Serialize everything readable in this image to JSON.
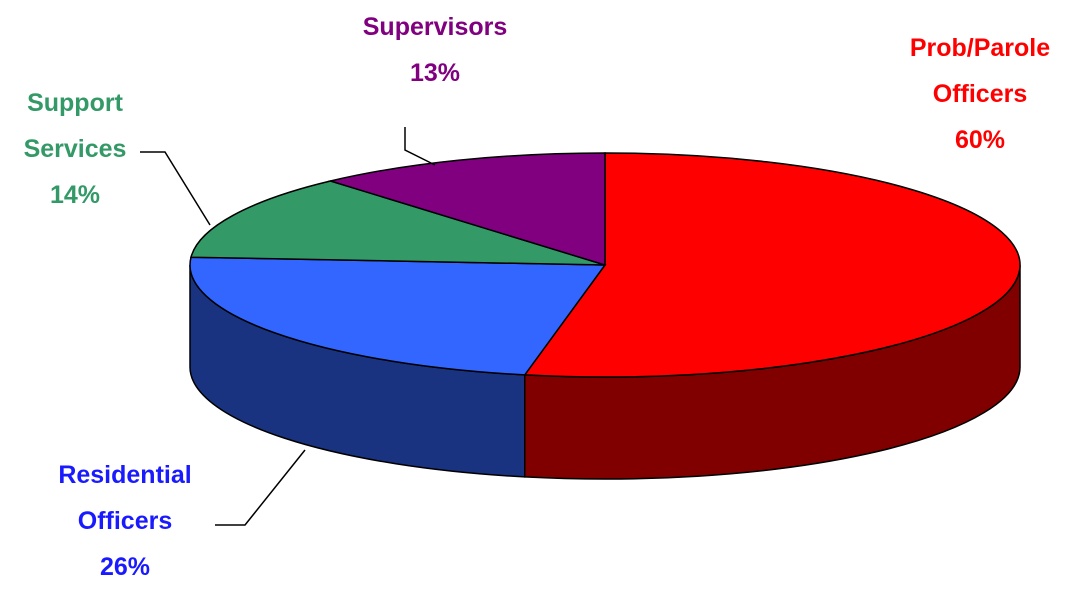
{
  "chart_data": {
    "type": "pie3d",
    "categories": [
      "Prob/Parole Officers",
      "Residential Officers",
      "Support Services",
      "Supervisors"
    ],
    "values": [
      60,
      26,
      14,
      13
    ],
    "value_labels": [
      "60%",
      "26%",
      "14%",
      "13%"
    ],
    "colors": [
      "#ff0000",
      "#3366ff",
      "#339966",
      "#800080"
    ],
    "label_colors": [
      "#ff0000",
      "#1a1aff",
      "#339966",
      "#800080"
    ]
  }
}
